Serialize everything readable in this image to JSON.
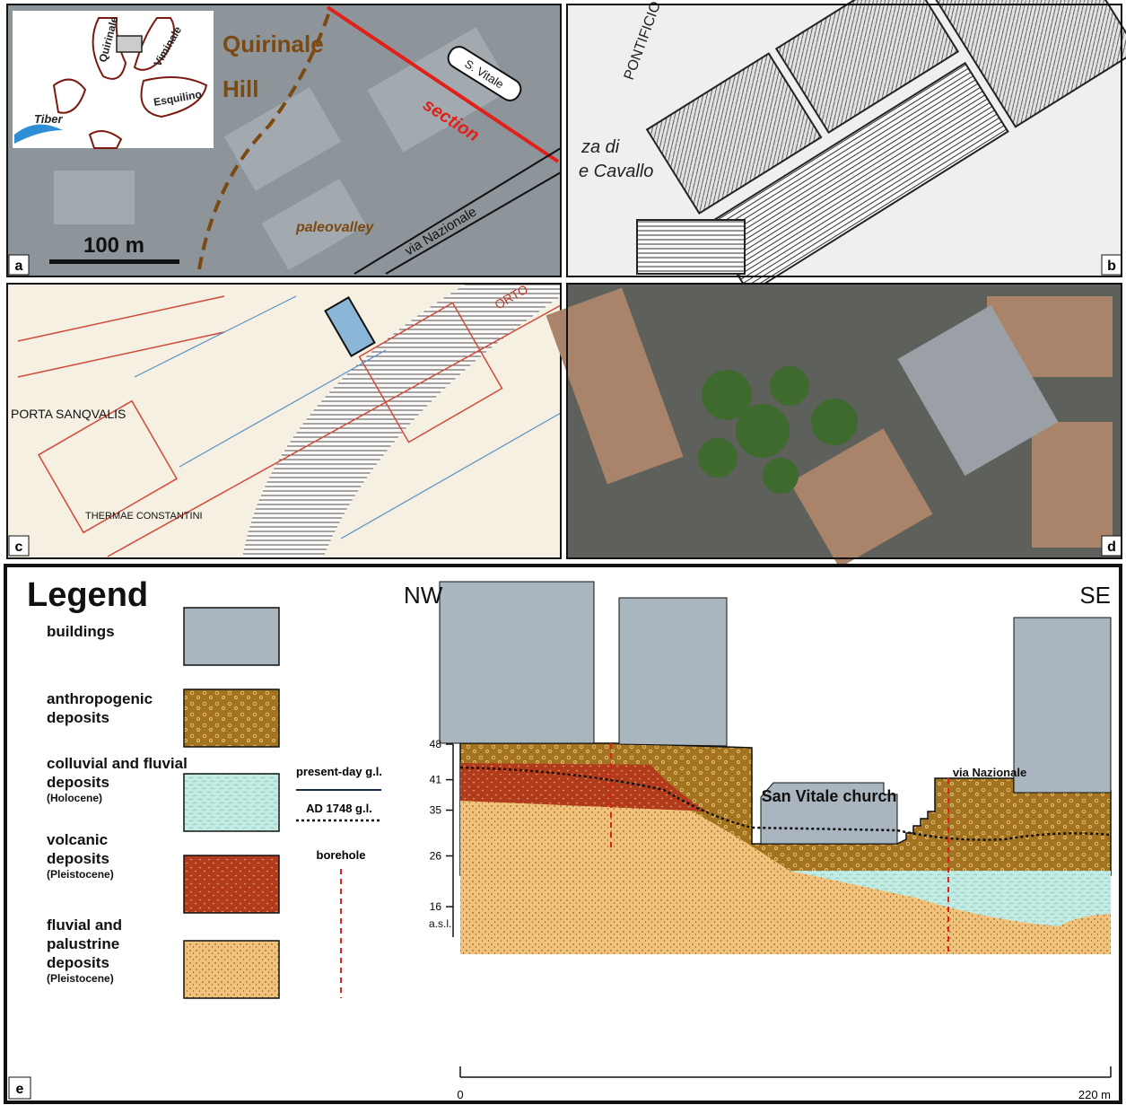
{
  "panels": {
    "a": {
      "label": "a",
      "inset": [
        "Quirinale",
        "Viminale",
        "Esquilino",
        "Tiber"
      ],
      "hill": "Quirinale",
      "hill2": "Hill",
      "church": "S. Vitale",
      "section": "section",
      "street": "via Nazionale",
      "paleovalley": "paleovalley",
      "scale": "100 m"
    },
    "b": {
      "label": "b",
      "labels": [
        "PONTIFICIO",
        "za di",
        "e Cavallo"
      ]
    },
    "c": {
      "label": "c",
      "labels": [
        "PORTA SANQVALIS",
        "THERMAE CONSTANTINI",
        "ORTO"
      ]
    },
    "d": {
      "label": "d"
    }
  },
  "section": {
    "label": "e",
    "legend_title": "Legend",
    "legend": [
      {
        "name": "buildings"
      },
      {
        "name": "anthropogenic deposits"
      },
      {
        "name": "colluvial and fluvial deposits",
        "note": "(Holocene)"
      },
      {
        "name": "volcanic deposits",
        "note": "(Pleistocene)"
      },
      {
        "name": "fluvial and palustrine deposits",
        "note": "(Pleistocene)"
      }
    ],
    "lines": [
      "present-day g.l.",
      "AD 1748 g.l.",
      "borehole"
    ],
    "nw": "NW",
    "se": "SE",
    "ylim": [
      10,
      48
    ],
    "yticks": [
      48,
      41,
      35,
      26,
      16
    ],
    "yunit": "a.s.l.",
    "xlim": [
      0,
      220
    ],
    "xticks": [
      0,
      {
        "value": 220,
        "label": "220 m"
      }
    ],
    "church": "San Vitale church",
    "street": "via Nazionale"
  }
}
